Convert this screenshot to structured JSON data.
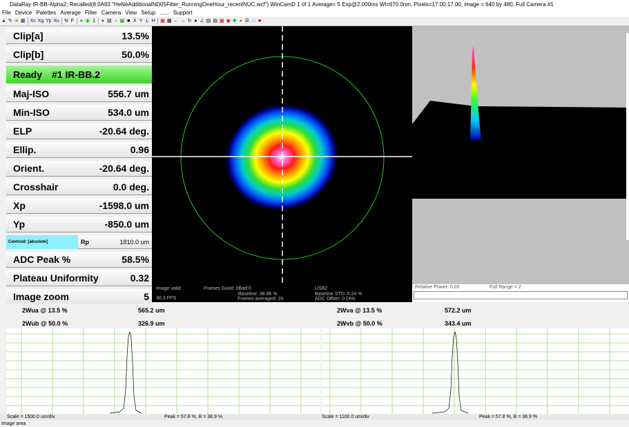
{
  "window": {
    "title": "DataRay IR-BB-Alpha2; Recalled(8.0A93 \"HeNeAdditionalND05Filter_RunningOneHour_recentNUC.wcf\")  WinCamD 1 of 1  Average= 5  Exp@2.000ms     Wl=670.0nm, Pixels=17.00:17.00, image = 640 by 480, Full  Camera #1"
  },
  "menu": [
    "File",
    "Device",
    "Palettes",
    "Average",
    "Filter",
    "Camera",
    "View",
    "Setup",
    "......",
    "Support"
  ],
  "toolbar": {
    "items": [
      "Xc",
      "Xg",
      "Yp",
      "Xu",
      "N",
      "F",
      "1",
      "X",
      "Y",
      "L",
      "H"
    ]
  },
  "params": [
    {
      "label": "Clip[a]",
      "value": "13.5%"
    },
    {
      "label": "Clip[b]",
      "value": "50.0%"
    },
    {
      "label": "Ready",
      "value": "#1 IR-BB.2"
    },
    {
      "label": "Maj-ISO",
      "value": "556.7 um"
    },
    {
      "label": "Min-ISO",
      "value": "534.0 um"
    },
    {
      "label": "ELP",
      "value": "-20.64 deg."
    },
    {
      "label": "Ellip.",
      "value": "0.96"
    },
    {
      "label": "Orient.",
      "value": "-20.64 deg."
    },
    {
      "label": "Crosshair",
      "value": "0.0 deg."
    },
    {
      "label": "Xp",
      "value": "-1598.0 um"
    },
    {
      "label": "Yp",
      "value": "-850.0 um"
    },
    {
      "label": "Centroid: [absolute]",
      "value": ""
    },
    {
      "label": "ADC Peak %",
      "value": "58.5%"
    },
    {
      "label": "Plateau Uniformity",
      "value": "0.32"
    },
    {
      "label": "Image zoom",
      "value": "5"
    }
  ],
  "rp": {
    "label": "Rp",
    "value": "1810.0 um"
  },
  "info": {
    "valid": "Image valid",
    "fps": "30.3 FPS",
    "frames_good": "Frames Good: 0Bad:0",
    "baseline": "Baseline: 38.86 %",
    "frames_avg": "Frames averaged: 20",
    "usb": "USB2",
    "baseline_std": "Baseline STD:  0.24 %",
    "adc_offset": "ADC Offset: 0 DNs"
  },
  "relpower": {
    "label": "Relative Power: 0.00",
    "range": "Full Range = 2"
  },
  "widths": {
    "wua_label": "2Wua @ 13.5 %",
    "wua": "565.2 um",
    "wub_label": "2Wub @ 50.0 %",
    "wub": "326.9 um",
    "wva_label": "2Wva @ 13.5 %",
    "wva": "572.2 um",
    "wvb_label": "2Wvb @ 50.0 %",
    "wvb": "343.4 um"
  },
  "scales": {
    "left_scale": "Scale = 1500.0 um/div",
    "left_peak": "Peak = 57.8 %,  B = 38.9 %",
    "right_scale": "Scale = 1100.0 um/div",
    "right_peak": "Peak = 57.8 %,  B = 38.9 %"
  },
  "statusbar": "Image area",
  "colors": {
    "ready_green": "#3ed827",
    "centroid_cyan": "#8cf0ff",
    "profile_grid": "#9ed66b",
    "circle": "#22cc22"
  }
}
